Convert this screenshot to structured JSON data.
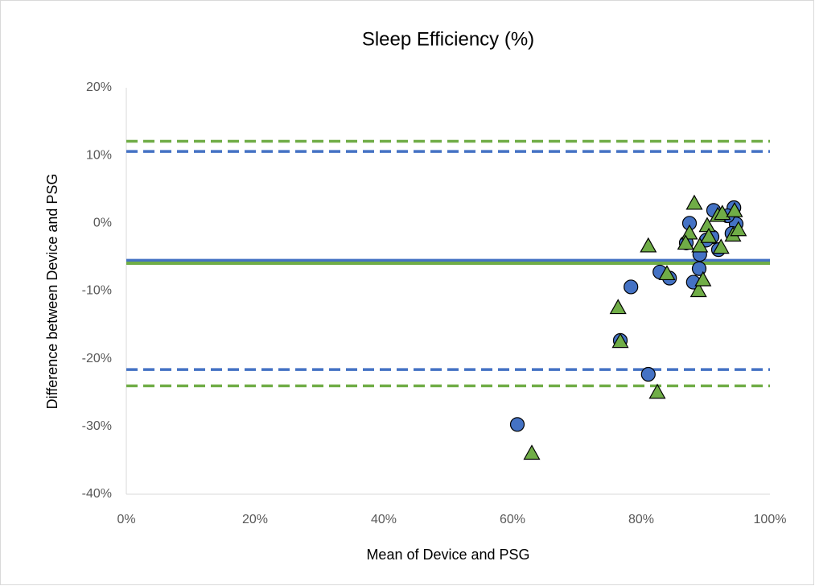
{
  "chart_data": {
    "type": "scatter",
    "title": "Sleep Efficiency (%)",
    "x_label": "Mean of Device and PSG",
    "y_label": "Difference between Device and PSG",
    "xlim": [
      0,
      100
    ],
    "xticks": [
      {
        "value": 0,
        "label": "0%"
      },
      {
        "value": 20,
        "label": "20%"
      },
      {
        "value": 40,
        "label": "40%"
      },
      {
        "value": 60,
        "label": "60%"
      },
      {
        "value": 80,
        "label": "80%"
      },
      {
        "value": 100,
        "label": "100%"
      }
    ],
    "ylim": [
      -40,
      20
    ],
    "yticks": [
      {
        "value": -40,
        "label": "-40%"
      },
      {
        "value": -30,
        "label": "-30%"
      },
      {
        "value": -20,
        "label": "-20%"
      },
      {
        "value": -10,
        "label": "-10%"
      },
      {
        "value": 0,
        "label": "0%"
      },
      {
        "value": 10,
        "label": "10%"
      },
      {
        "value": 20,
        "label": "20%"
      }
    ],
    "reference_lines": [
      {
        "value": 10.6,
        "color": "#4472c4",
        "style": "dashed"
      },
      {
        "value": 12.1,
        "color": "#70ad47",
        "style": "dashed"
      },
      {
        "value": -5.5,
        "color": "#4472c4",
        "style": "solid"
      },
      {
        "value": -5.9,
        "color": "#70ad47",
        "style": "solid"
      },
      {
        "value": -21.6,
        "color": "#4472c4",
        "style": "dashed"
      },
      {
        "value": -24.0,
        "color": "#70ad47",
        "style": "dashed"
      }
    ],
    "series": [
      {
        "color": "#4472c4",
        "marker": "circle",
        "x": [
          60.75,
          78.4,
          76.75,
          81.1,
          82.9,
          84.4,
          87.5,
          87,
          88.1,
          89,
          89.1,
          91.25,
          91,
          90.1,
          92,
          94.4,
          94.75,
          94.1,
          93.4
        ],
        "values": [
          -29.7,
          -9.4,
          -17.3,
          -22.3,
          -7.2,
          -8.1,
          0,
          -2.9,
          -8.7,
          -6.7,
          -4.6,
          1.9,
          -2,
          -2.5,
          -3.9,
          2.3,
          -0.1,
          -1.5,
          1.1
        ]
      },
      {
        "color": "#70ad47",
        "marker": "triangle",
        "x": [
          63,
          76.75,
          76.4,
          81.1,
          82.5,
          84,
          88.25,
          87.5,
          86.9,
          88.9,
          89.6,
          89.1,
          90.25,
          90.5,
          91.9,
          92.4,
          92.6,
          94.5,
          94.25,
          95.1
        ],
        "values": [
          -34,
          -17.5,
          -12.5,
          -3.4,
          -25,
          -7.5,
          2.9,
          -1.5,
          -3,
          -10,
          -8.4,
          -3.4,
          -0.4,
          -2,
          1.1,
          -3.6,
          1.4,
          1.8,
          -1.8,
          -1
        ]
      }
    ]
  }
}
